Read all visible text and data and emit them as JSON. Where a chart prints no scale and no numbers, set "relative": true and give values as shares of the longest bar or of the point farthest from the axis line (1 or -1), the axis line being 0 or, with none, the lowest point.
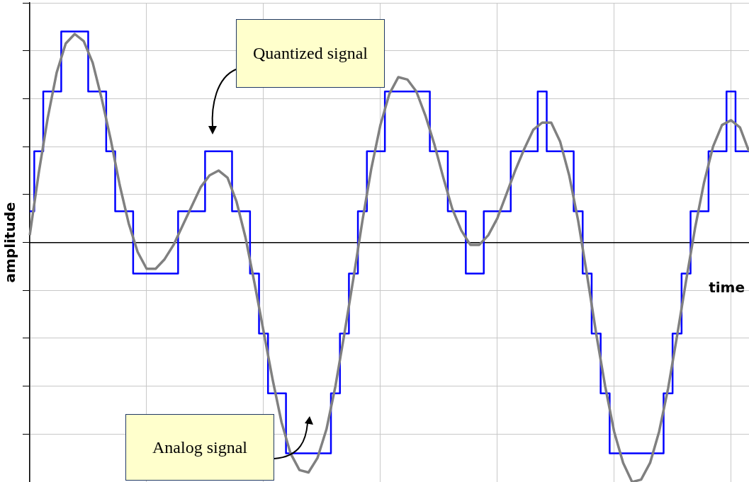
{
  "chart_data": {
    "type": "line",
    "relative": true,
    "xlabel": "time",
    "ylabel": "amplitude",
    "grid": true,
    "legend": false,
    "marker": "none",
    "categories": [
      null,
      null,
      null,
      null,
      null,
      null,
      null,
      null,
      null,
      null,
      null,
      null,
      null,
      null,
      null,
      null,
      null,
      null,
      null,
      null,
      null,
      null,
      null,
      null,
      null,
      null,
      null,
      null,
      null,
      null,
      null,
      null,
      null,
      null,
      null,
      null,
      null,
      null,
      null,
      null,
      null,
      null,
      null,
      null,
      null,
      null,
      null,
      null,
      null,
      null,
      null,
      null,
      null,
      null,
      null,
      null,
      null,
      null,
      null,
      null,
      null,
      null,
      null,
      null,
      null,
      null,
      null,
      null,
      null,
      null,
      null,
      null,
      null,
      null,
      null,
      null,
      null,
      null,
      null,
      null,
      null
    ],
    "series": [
      {
        "type": "line",
        "color": "#808080",
        "values": [
          0.03,
          0.29,
          0.52,
          0.71,
          0.83,
          0.87,
          0.84,
          0.75,
          0.6,
          0.43,
          0.24,
          0.08,
          -0.04,
          -0.11,
          -0.11,
          -0.07,
          -0.01,
          0.07,
          0.15,
          0.23,
          0.28,
          0.3,
          0.27,
          0.17,
          0.02,
          -0.17,
          -0.37,
          -0.57,
          -0.75,
          -0.88,
          -0.95,
          -0.96,
          -0.9,
          -0.78,
          -0.6,
          -0.38,
          -0.15,
          0.09,
          0.31,
          0.49,
          0.62,
          0.69,
          0.68,
          0.63,
          0.53,
          0.41,
          0.27,
          0.14,
          0.05,
          -0.01,
          -0.01,
          0.03,
          0.1,
          0.2,
          0.3,
          0.39,
          0.47,
          0.5,
          0.5,
          0.42,
          0.28,
          0.09,
          -0.14,
          -0.38,
          -0.6,
          -0.79,
          -0.92,
          -1,
          -0.99,
          -0.92,
          -0.79,
          -0.61,
          -0.39,
          -0.16,
          0.06,
          0.25,
          0.4,
          0.49,
          0.51,
          0.48,
          0.38
        ]
      },
      {
        "type": "step",
        "color": "#0000ff",
        "values": [
          0.13,
          0.38,
          0.63,
          0.63,
          0.88,
          0.88,
          0.88,
          0.63,
          0.63,
          0.38,
          0.13,
          0.13,
          -0.13,
          -0.13,
          -0.13,
          -0.13,
          -0.13,
          0.13,
          0.13,
          0.13,
          0.38,
          0.38,
          0.38,
          0.13,
          0.13,
          -0.13,
          -0.38,
          -0.63,
          -0.63,
          -0.88,
          -0.88,
          -0.88,
          -0.88,
          -0.88,
          -0.63,
          -0.38,
          -0.13,
          0.13,
          0.38,
          0.38,
          0.63,
          0.63,
          0.63,
          0.63,
          0.63,
          0.38,
          0.38,
          0.13,
          0.13,
          -0.13,
          -0.13,
          0.13,
          0.13,
          0.13,
          0.38,
          0.38,
          0.38,
          0.63,
          0.38,
          0.38,
          0.38,
          0.13,
          -0.13,
          -0.38,
          -0.63,
          -0.88,
          -0.88,
          -0.88,
          -0.88,
          -0.88,
          -0.88,
          -0.63,
          -0.38,
          -0.13,
          0.13,
          0.13,
          0.38,
          0.38,
          0.63,
          0.38,
          0.38
        ]
      }
    ],
    "annotations": [
      "Quantized signal",
      "Analog signal"
    ]
  }
}
